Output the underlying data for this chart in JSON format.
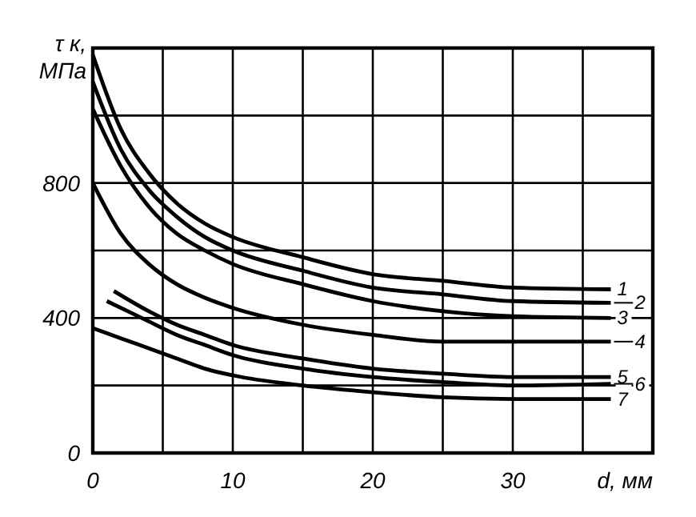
{
  "chart_data": {
    "type": "line",
    "xlabel": "d, мм",
    "ylabel": "τ к, МПа",
    "xlim": [
      0,
      40
    ],
    "ylim": [
      0,
      1200
    ],
    "xticks": [
      0,
      {
        "value": 5,
        "label": null
      },
      10,
      {
        "value": 15,
        "label": null
      },
      20,
      {
        "value": 25,
        "label": null
      },
      30,
      {
        "value": 35,
        "label": null
      }
    ],
    "yticks": [
      0,
      {
        "value": 200,
        "label": null
      },
      400,
      {
        "value": 600,
        "label": null
      },
      800,
      {
        "value": 1000,
        "label": null
      }
    ],
    "grid": true,
    "marker": "none",
    "line_style": "solid",
    "series": [
      {
        "name": "1",
        "color": "#000000",
        "x": [
          0,
          2,
          4,
          6,
          8,
          10,
          15,
          20,
          25,
          30,
          37
        ],
        "values": [
          1180,
          960,
          830,
          740,
          680,
          640,
          580,
          530,
          510,
          490,
          485
        ]
      },
      {
        "name": "2",
        "color": "#000000",
        "x": [
          0,
          2,
          4,
          6,
          8,
          10,
          15,
          20,
          25,
          30,
          37
        ],
        "values": [
          1100,
          900,
          780,
          700,
          640,
          600,
          540,
          490,
          470,
          450,
          445
        ]
      },
      {
        "name": "3",
        "color": "#000000",
        "x": [
          0,
          2,
          4,
          6,
          8,
          10,
          15,
          20,
          25,
          30,
          37
        ],
        "values": [
          1020,
          850,
          730,
          650,
          600,
          560,
          500,
          450,
          420,
          405,
          400
        ]
      },
      {
        "name": "4",
        "color": "#000000",
        "x": [
          0,
          2,
          4,
          6,
          8,
          10,
          15,
          20,
          25,
          30,
          37
        ],
        "values": [
          800,
          650,
          560,
          500,
          460,
          430,
          380,
          350,
          330,
          330,
          330
        ]
      },
      {
        "name": "5",
        "color": "#000000",
        "x": [
          1.5,
          4,
          6,
          8,
          10,
          15,
          20,
          25,
          30,
          37
        ],
        "values": [
          480,
          420,
          380,
          350,
          320,
          280,
          250,
          235,
          225,
          225
        ]
      },
      {
        "name": "6",
        "color": "#000000",
        "x": [
          1,
          4,
          6,
          8,
          10,
          15,
          20,
          25,
          30,
          37
        ],
        "values": [
          450,
          390,
          350,
          320,
          290,
          250,
          225,
          210,
          200,
          205
        ]
      },
      {
        "name": "7",
        "color": "#000000",
        "x": [
          0,
          2,
          4,
          6,
          8,
          10,
          15,
          20,
          25,
          30,
          37
        ],
        "values": [
          370,
          340,
          310,
          280,
          250,
          230,
          200,
          180,
          165,
          160,
          160
        ]
      }
    ]
  }
}
